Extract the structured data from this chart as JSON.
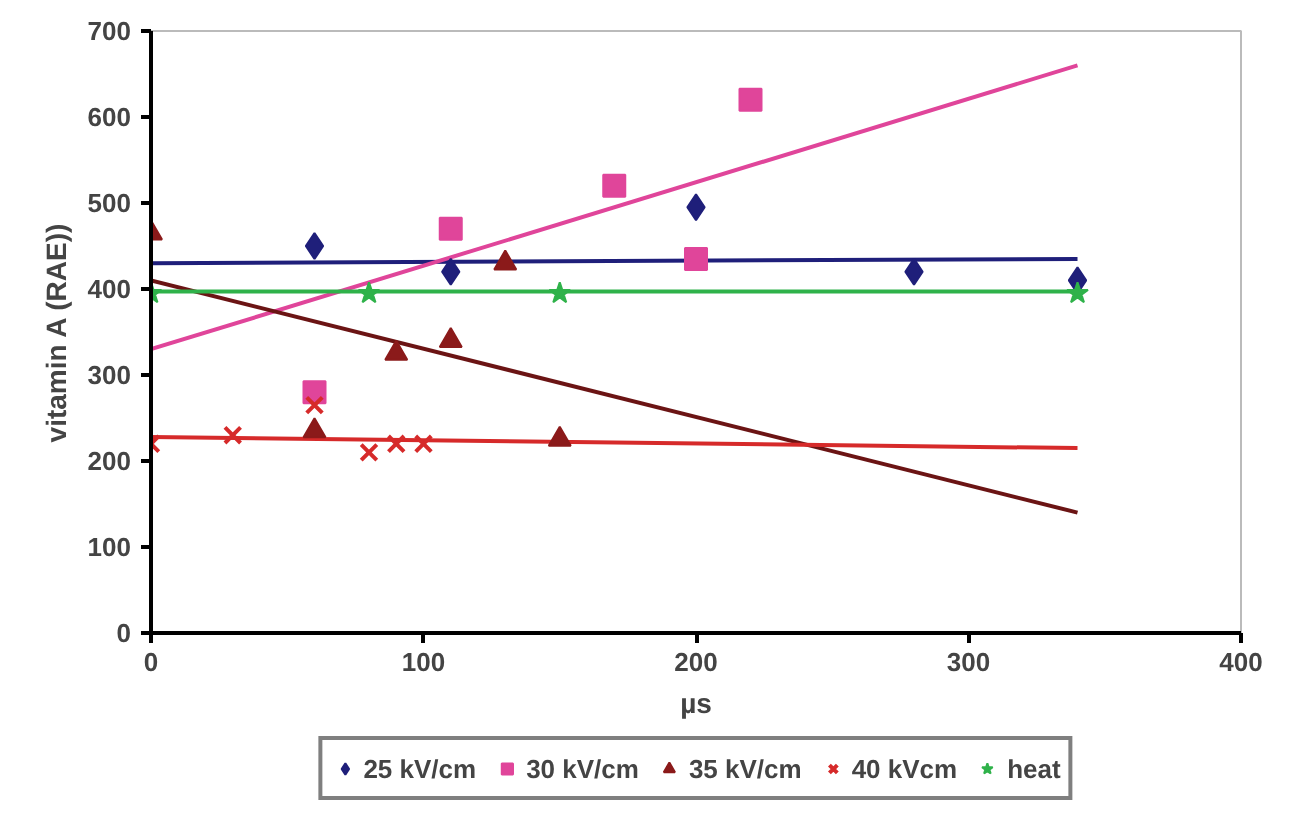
{
  "chart_data": {
    "type": "scatter",
    "xlabel": "µs",
    "ylabel": "vitamin A (RAE))",
    "xlim": [
      0,
      400
    ],
    "ylim": [
      0,
      700
    ],
    "xticks": [
      0,
      100,
      200,
      300,
      400
    ],
    "yticks": [
      0,
      100,
      200,
      300,
      400,
      500,
      600,
      700
    ],
    "grid": false,
    "legend": "bottom",
    "series": [
      {
        "name": "25 kV/cm",
        "color": "#1f1f7a",
        "marker": "diamond",
        "x": [
          60,
          110,
          200,
          280,
          340
        ],
        "values": [
          450,
          420,
          495,
          420,
          410
        ]
      },
      {
        "name": "30 kV/cm",
        "color": "#e0459a",
        "marker": "square",
        "x": [
          60,
          110,
          170,
          200,
          220
        ],
        "values": [
          280,
          470,
          520,
          435,
          620
        ]
      },
      {
        "name": "35 kV/cm",
        "color": "#8b1a1a",
        "marker": "triangle",
        "x": [
          0,
          60,
          90,
          110,
          130,
          150
        ],
        "values": [
          465,
          235,
          325,
          340,
          430,
          225
        ]
      },
      {
        "name": "40 kVcm",
        "color": "#d62a2a",
        "marker": "cross",
        "x": [
          0,
          30,
          60,
          80,
          90,
          100
        ],
        "values": [
          220,
          230,
          265,
          210,
          220,
          220
        ]
      },
      {
        "name": "heat",
        "color": "#2fb24a",
        "marker": "star",
        "x": [
          0,
          80,
          150,
          340
        ],
        "values": [
          395,
          395,
          395,
          395
        ]
      },
      {
        "type": "line",
        "color": "#1f1f7a",
        "x": [
          0,
          340
        ],
        "values": [
          430,
          435
        ]
      },
      {
        "type": "line",
        "color": "#e0459a",
        "x": [
          0,
          340
        ],
        "values": [
          330,
          660
        ]
      },
      {
        "type": "line",
        "color": "#6b1414",
        "x": [
          0,
          340
        ],
        "values": [
          410,
          140
        ]
      },
      {
        "type": "line",
        "color": "#d62a2a",
        "x": [
          0,
          340
        ],
        "values": [
          228,
          215
        ]
      },
      {
        "type": "line",
        "color": "#2fb24a",
        "x": [
          0,
          340
        ],
        "values": [
          397,
          397
        ]
      }
    ]
  }
}
